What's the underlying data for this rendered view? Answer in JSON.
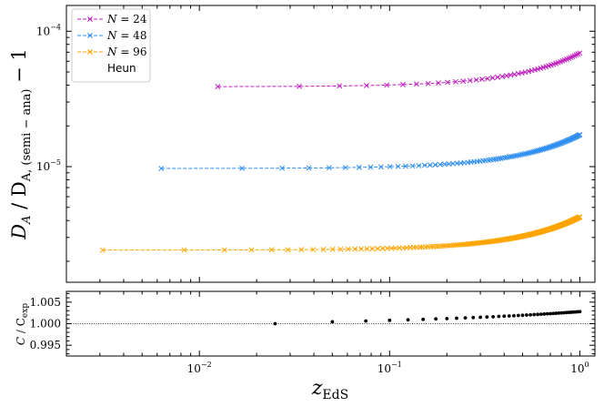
{
  "chart_data": [
    {
      "type": "line",
      "panel": "top",
      "ylabel_main": "D",
      "ylabel_sub_a": "A",
      "ylabel_mid": " / D",
      "ylabel_sub_b": "A, (semi − ana)",
      "ylabel_tail": " − 1",
      "yscale": "log",
      "xscale": "log",
      "xlim": [
        0.002,
        1.2
      ],
      "ylim": [
        1.4e-06,
        0.000155
      ],
      "y_tick_labels": [
        {
          "value": 1e-05,
          "base": "10",
          "exp": "−5"
        },
        {
          "value": 0.0001,
          "base": "10",
          "exp": "−4"
        }
      ],
      "legend": {
        "placement": "top-left"
      },
      "series": [
        {
          "label_var": "N",
          "label_eq": " = 24",
          "color": "#bf1fbf",
          "n": 24,
          "y_start": 3.9e-05,
          "y_end": 6.9e-05,
          "x_start": 0.0125,
          "x_end": 1.0
        },
        {
          "label_var": "N",
          "label_eq": " = 48",
          "color": "#2f8ef0",
          "n": 48,
          "y_start": 9.7e-06,
          "y_end": 1.72e-05,
          "x_start": 0.0063,
          "x_end": 1.0
        },
        {
          "label_var": "N",
          "label_eq": " = 96",
          "color": "#ffa500",
          "n": 96,
          "y_start": 2.42e-06,
          "y_end": 4.25e-06,
          "x_start": 0.0031,
          "x_end": 1.0
        },
        {
          "label": "Heun",
          "color": "#000000"
        }
      ]
    },
    {
      "type": "scatter",
      "panel": "bottom",
      "ylabel_main": "C",
      "ylabel_mid": " / C",
      "ylabel_sub": "exp",
      "xlabel_main": "z",
      "xlabel_sub": "EdS",
      "xscale": "log",
      "xlim": [
        0.002,
        1.2
      ],
      "ylim": [
        0.9925,
        1.0075
      ],
      "y_tick_labels": [
        "1.005",
        "1.000",
        "0.995"
      ],
      "y_tick_values": [
        1.005,
        1.0,
        0.995
      ],
      "x_tick_labels": [
        {
          "value": 0.01,
          "base": "10",
          "exp": "−2"
        },
        {
          "value": 0.1,
          "base": "10",
          "exp": "−1"
        },
        {
          "value": 1.0,
          "base": "10",
          "exp": "0"
        }
      ],
      "reference_line": 1.0,
      "points_count": 40,
      "x_start": 0.025,
      "x_end": 1.0,
      "y_start": 1.0,
      "y_end": 1.0028
    }
  ]
}
